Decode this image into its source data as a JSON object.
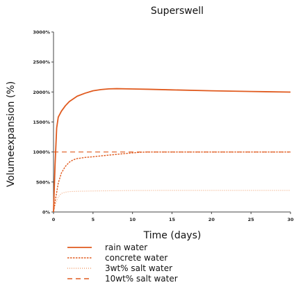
{
  "chart_data": {
    "type": "line",
    "title": "Superswell",
    "xlabel": "Time (days)",
    "ylabel": "Volumeexpansion (%)",
    "xlim": [
      0,
      30
    ],
    "ylim": [
      0,
      3000
    ],
    "xticks": [
      0,
      5,
      10,
      15,
      20,
      25,
      30
    ],
    "yticks": [
      0,
      500,
      1000,
      1500,
      2000,
      2500,
      3000
    ],
    "ytick_labels": [
      "0%",
      "500%",
      "1000%",
      "1500%",
      "2000%",
      "2500%",
      "3000%"
    ],
    "grid": false,
    "legend_position": "bottom",
    "series": [
      {
        "name": "rain water",
        "style": "solid",
        "color": "#e05a1e",
        "x": [
          0,
          0.2,
          0.4,
          0.6,
          1,
          1.5,
          2,
          3,
          4,
          5,
          6,
          7,
          8,
          10,
          12,
          15,
          20,
          25,
          30
        ],
        "y": [
          0,
          800,
          1400,
          1580,
          1680,
          1770,
          1840,
          1930,
          1980,
          2020,
          2040,
          2052,
          2055,
          2050,
          2045,
          2035,
          2020,
          2008,
          1998
        ]
      },
      {
        "name": "concrete water",
        "style": "dotted-dense",
        "color": "#e05a1e",
        "x": [
          0,
          0.3,
          0.6,
          1,
          1.5,
          2,
          2.5,
          3,
          4,
          5,
          6,
          8,
          10,
          11,
          12,
          15,
          20,
          25,
          30
        ],
        "y": [
          0,
          250,
          480,
          650,
          760,
          830,
          870,
          890,
          910,
          920,
          935,
          960,
          985,
          995,
          1000,
          1000,
          1000,
          1000,
          1000
        ]
      },
      {
        "name": "3wt% salt water",
        "style": "dotted",
        "color": "#f0a070",
        "x": [
          0,
          0.3,
          0.6,
          1,
          1.5,
          2,
          3,
          5,
          8,
          10,
          15,
          20,
          25,
          30
        ],
        "y": [
          0,
          150,
          250,
          310,
          330,
          340,
          345,
          350,
          355,
          358,
          360,
          360,
          360,
          360
        ]
      },
      {
        "name": "10wt% salt water",
        "style": "dashed",
        "color": "#e05a1e",
        "x": [
          0,
          30
        ],
        "y": [
          1000,
          1000
        ]
      }
    ]
  }
}
